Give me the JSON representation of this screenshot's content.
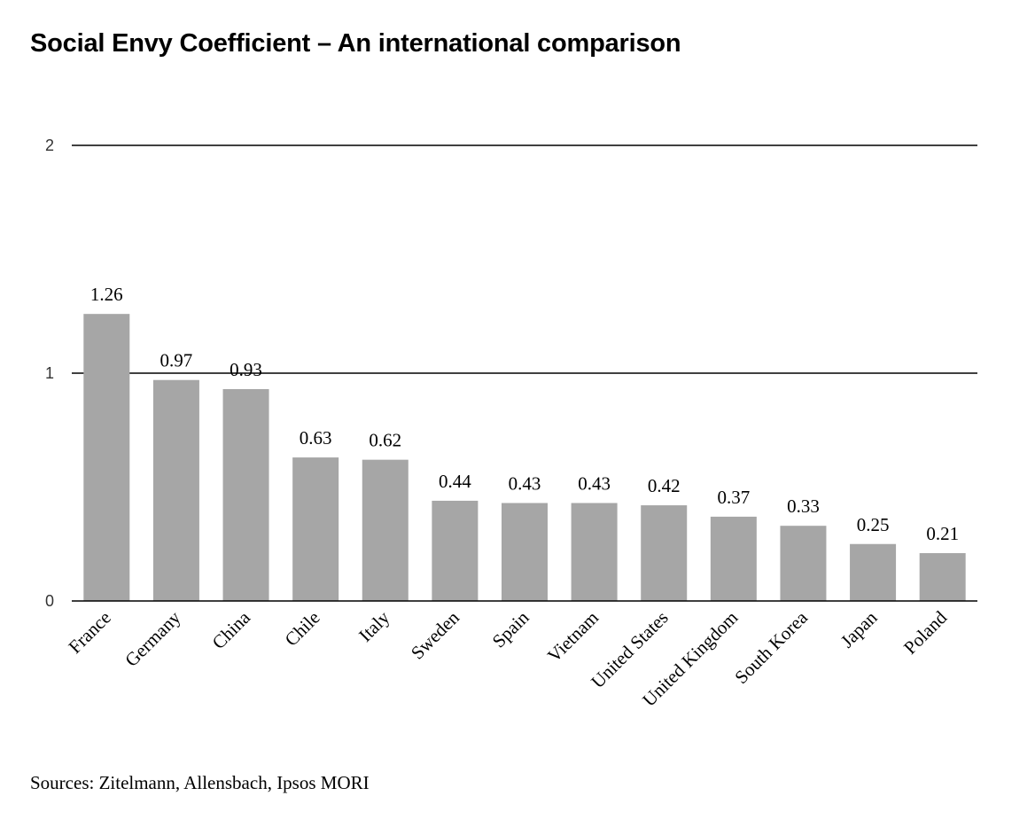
{
  "chart_data": {
    "type": "bar",
    "title": "Social Envy Coefficient – An international comparison",
    "categories": [
      "France",
      "Germany",
      "China",
      "Chile",
      "Italy",
      "Sweden",
      "Spain",
      "Vietnam",
      "United States",
      "United Kingdom",
      "South Korea",
      "Japan",
      "Poland"
    ],
    "values": [
      1.26,
      0.97,
      0.93,
      0.63,
      0.62,
      0.44,
      0.43,
      0.43,
      0.42,
      0.37,
      0.33,
      0.25,
      0.21
    ],
    "value_labels": [
      "1.26",
      "0.97",
      "0.93",
      "0.63",
      "0.62",
      "0.44",
      "0.43",
      "0.43",
      "0.42",
      "0.37",
      "0.33",
      "0.25",
      "0.21"
    ],
    "xlabel": "",
    "ylabel": "",
    "ylim": [
      0,
      2
    ],
    "yticks": [
      0,
      1,
      2
    ],
    "ytick_labels": [
      "0",
      "1",
      "2"
    ],
    "grid": true,
    "bar_color": "#a6a6a6",
    "gridline_color": "#000000",
    "source": "Sources: Zitelmann, Allensbach, Ipsos MORI"
  }
}
